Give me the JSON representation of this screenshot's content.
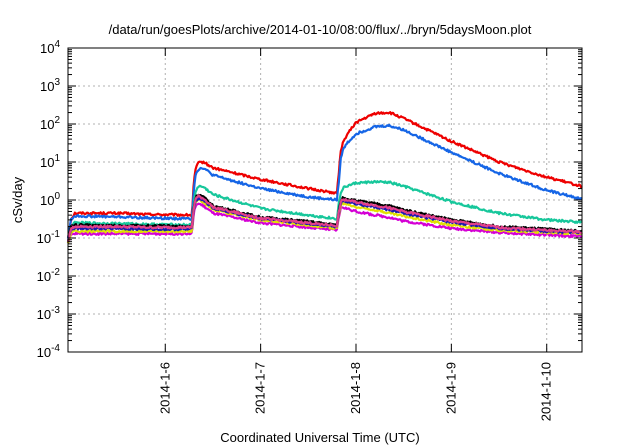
{
  "chart_data": {
    "type": "line",
    "title": "/data/run/goesPlots/archive/2014-01-10/08:00/flux/../bryn/5daysMoon.plot",
    "xlabel": "Coordinated Universal Time (UTC)",
    "ylabel": "cSv/day",
    "ylog": true,
    "xlim": [
      4.98,
      10.37
    ],
    "ylim_exp": [
      -4,
      4
    ],
    "y_ticks": [
      {
        "exp": "-4"
      },
      {
        "exp": "-3"
      },
      {
        "exp": "-2"
      },
      {
        "exp": "-1"
      },
      {
        "exp": "0"
      },
      {
        "exp": "1"
      },
      {
        "exp": "2"
      },
      {
        "exp": "3"
      },
      {
        "exp": "4"
      }
    ],
    "x_ticks": [
      {
        "label": "2014-1-6",
        "x": 6
      },
      {
        "label": "2014-1-7",
        "x": 7
      },
      {
        "label": "2014-1-8",
        "x": 8
      },
      {
        "label": "2014-1-9",
        "x": 9
      },
      {
        "label": "2014-1-10",
        "x": 10
      }
    ],
    "grid": true,
    "series": [
      {
        "color": "#ee0000",
        "x": [
          4.98,
          5.01,
          5.05,
          5.5,
          5.8,
          6.28,
          6.3,
          6.32,
          6.35,
          6.4,
          6.5,
          7.0,
          7.5,
          7.8,
          7.82,
          7.84,
          7.86,
          7.9,
          8.0,
          8.2,
          8.35,
          8.5,
          9.0,
          9.5,
          10.0,
          10.37
        ],
        "y": [
          0.1,
          0.3,
          0.45,
          0.45,
          0.42,
          0.4,
          3,
          7,
          9.5,
          10,
          7,
          3.5,
          2,
          1.5,
          5,
          20,
          30,
          50,
          110,
          190,
          200,
          140,
          35,
          10,
          4,
          2.3
        ]
      },
      {
        "color": "#1565e6",
        "x": [
          4.98,
          5.01,
          5.05,
          5.5,
          5.8,
          6.28,
          6.3,
          6.32,
          6.35,
          6.4,
          6.5,
          7.0,
          7.5,
          7.8,
          7.82,
          7.84,
          7.86,
          7.9,
          8.0,
          8.2,
          8.35,
          8.5,
          9.0,
          9.5,
          10.0,
          10.37
        ],
        "y": [
          0.1,
          0.3,
          0.38,
          0.36,
          0.34,
          0.32,
          2,
          5,
          6.5,
          7,
          4.5,
          2,
          1.2,
          1,
          3,
          12,
          20,
          30,
          55,
          85,
          90,
          70,
          18,
          5,
          1.8,
          1.05
        ]
      },
      {
        "color": "#17c79b",
        "x": [
          4.98,
          5.01,
          5.05,
          5.5,
          5.8,
          6.28,
          6.3,
          6.32,
          6.35,
          6.4,
          6.5,
          7.0,
          7.5,
          7.8,
          7.82,
          7.84,
          7.86,
          7.9,
          8.0,
          8.2,
          8.35,
          8.5,
          9.0,
          9.5,
          10.0,
          10.37
        ],
        "y": [
          0.08,
          0.2,
          0.25,
          0.24,
          0.23,
          0.22,
          0.9,
          1.8,
          2.3,
          2.2,
          1.4,
          0.6,
          0.4,
          0.32,
          0.8,
          1.5,
          2,
          2.3,
          2.8,
          3,
          2.9,
          2.3,
          0.9,
          0.45,
          0.3,
          0.26
        ]
      },
      {
        "color": "#000000",
        "x": [
          4.98,
          5.01,
          5.05,
          5.5,
          5.8,
          6.28,
          6.3,
          6.32,
          6.35,
          6.4,
          6.5,
          7.0,
          7.5,
          7.8,
          7.82,
          7.84,
          7.86,
          7.9,
          8.0,
          8.2,
          8.35,
          8.5,
          9.0,
          9.5,
          10.0,
          10.37
        ],
        "y": [
          0.08,
          0.2,
          0.22,
          0.21,
          0.21,
          0.2,
          0.7,
          1.2,
          1.4,
          1.2,
          0.7,
          0.35,
          0.27,
          0.22,
          0.5,
          0.95,
          1.15,
          1.1,
          0.95,
          0.8,
          0.7,
          0.55,
          0.3,
          0.2,
          0.17,
          0.15
        ]
      },
      {
        "color": "#d400d4",
        "x": [
          4.98,
          5.01,
          5.05,
          5.5,
          5.8,
          6.28,
          6.3,
          6.32,
          6.35,
          6.4,
          6.5,
          7.0,
          7.5,
          7.8,
          7.82,
          7.84,
          7.86,
          7.9,
          8.0,
          8.2,
          8.35,
          8.5,
          9.0,
          9.5,
          10.0,
          10.37
        ],
        "y": [
          0.07,
          0.12,
          0.13,
          0.13,
          0.13,
          0.13,
          0.45,
          0.75,
          0.8,
          0.7,
          0.45,
          0.25,
          0.19,
          0.16,
          0.35,
          0.6,
          0.65,
          0.6,
          0.5,
          0.4,
          0.35,
          0.28,
          0.18,
          0.14,
          0.12,
          0.11
        ]
      },
      {
        "color": "#e0e000",
        "x": [
          4.98,
          5.01,
          5.05,
          5.5,
          5.8,
          6.28,
          6.3,
          6.32,
          6.35,
          6.4,
          6.5,
          7.0,
          7.5,
          7.8,
          7.82,
          7.84,
          7.86,
          7.9,
          8.0,
          8.2,
          8.35,
          8.5,
          9.0,
          9.5,
          10.0,
          10.37
        ],
        "y": [
          0.07,
          0.14,
          0.15,
          0.15,
          0.15,
          0.15,
          0.55,
          0.9,
          1.0,
          0.9,
          0.55,
          0.3,
          0.22,
          0.18,
          0.4,
          0.7,
          0.8,
          0.78,
          0.65,
          0.55,
          0.45,
          0.38,
          0.22,
          0.16,
          0.14,
          0.13
        ]
      },
      {
        "color": "#1a1ab0",
        "x": [
          4.98,
          5.01,
          5.05,
          5.5,
          5.8,
          6.28,
          6.3,
          6.32,
          6.35,
          6.4,
          6.5,
          7.0,
          7.5,
          7.8,
          7.82,
          7.84,
          7.86,
          7.9,
          8.0,
          8.2,
          8.35,
          8.5,
          9.0,
          9.5,
          10.0,
          10.37
        ],
        "y": [
          0.08,
          0.17,
          0.18,
          0.18,
          0.17,
          0.17,
          0.6,
          1.0,
          1.1,
          1.0,
          0.6,
          0.32,
          0.24,
          0.2,
          0.45,
          0.8,
          0.95,
          0.92,
          0.8,
          0.65,
          0.55,
          0.45,
          0.26,
          0.18,
          0.15,
          0.14
        ]
      },
      {
        "color": "#e23f8a",
        "x": [
          4.98,
          5.01,
          5.05,
          5.5,
          5.8,
          6.28,
          6.3,
          6.32,
          6.35,
          6.4,
          6.5,
          7.0,
          7.5,
          7.8,
          7.82,
          7.84,
          7.86,
          7.9,
          8.0,
          8.2,
          8.35,
          8.5,
          9.0,
          9.5,
          10.0,
          10.37
        ],
        "y": [
          0.08,
          0.18,
          0.2,
          0.2,
          0.19,
          0.19,
          0.65,
          1.1,
          1.25,
          1.1,
          0.65,
          0.33,
          0.25,
          0.21,
          0.47,
          0.85,
          1.05,
          1.0,
          0.88,
          0.72,
          0.62,
          0.5,
          0.28,
          0.19,
          0.16,
          0.145
        ]
      }
    ]
  }
}
